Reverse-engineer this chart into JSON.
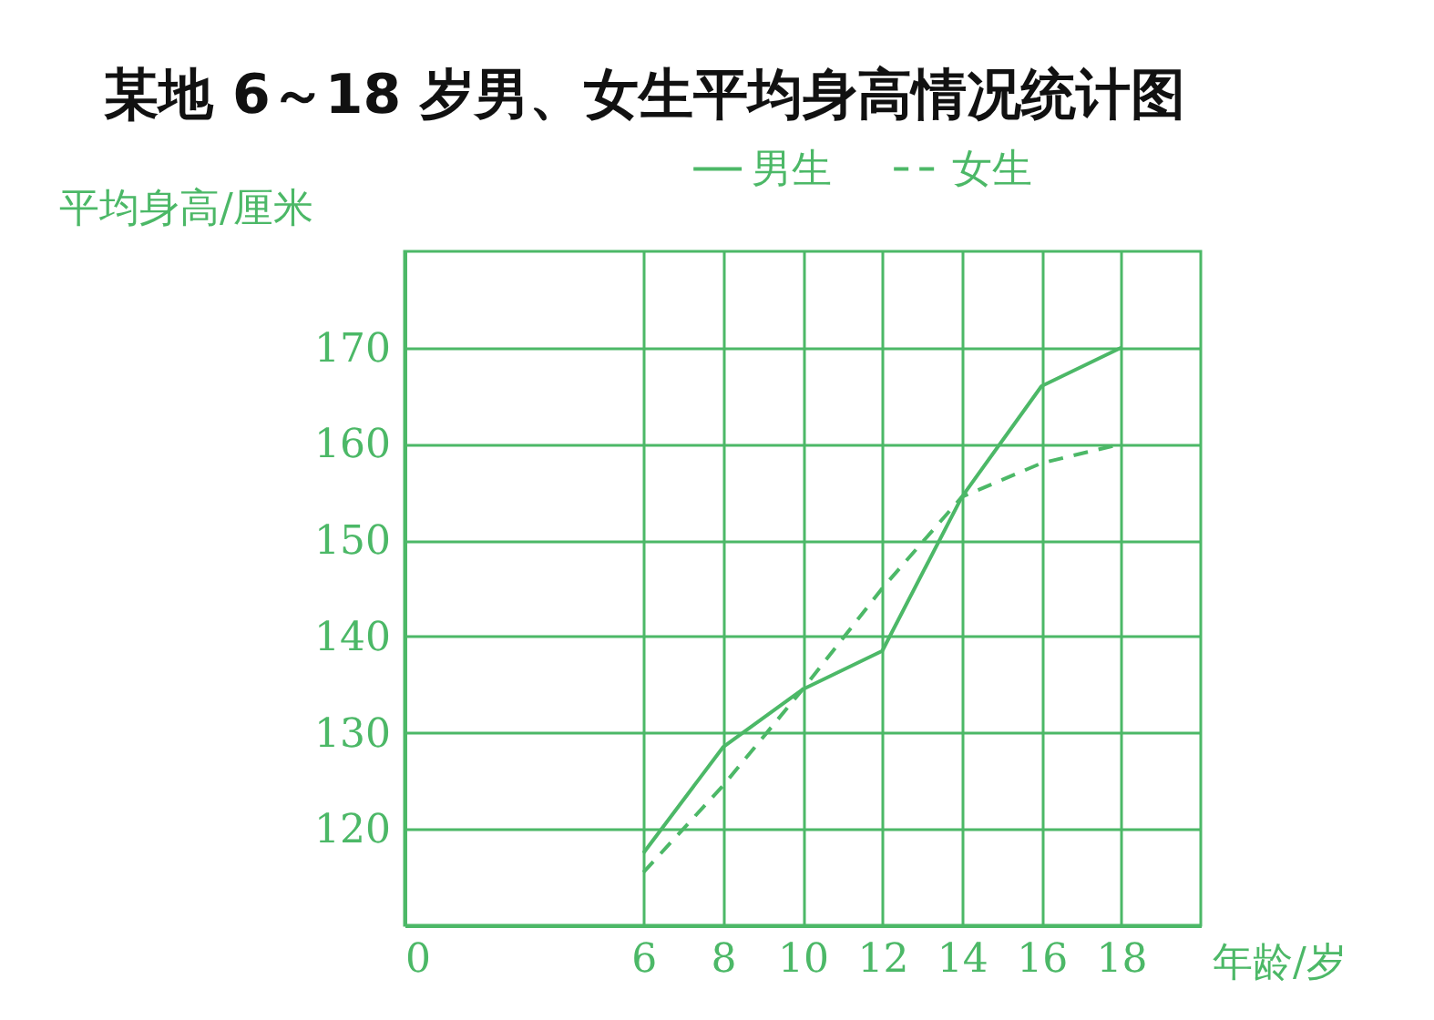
{
  "chart_data": {
    "type": "line",
    "title": "某地 6～18 岁男、女生平均身高情况统计图",
    "xlabel": "年龄/岁",
    "ylabel": "平均身高/厘米",
    "x": [
      6,
      8,
      10,
      12,
      14,
      16,
      18
    ],
    "series": [
      {
        "name": "男生",
        "color": "#4cb867",
        "line_style": "solid",
        "values": [
          117.5,
          128.5,
          134.5,
          138.5,
          154.5,
          166,
          170
        ]
      },
      {
        "name": "女生",
        "color": "#4cb867",
        "line_style": "dashed",
        "values": [
          115.5,
          124.5,
          134.5,
          145,
          154.5,
          158,
          160
        ]
      }
    ],
    "xlim": [
      0,
      20
    ],
    "xticks": [
      0,
      6,
      8,
      10,
      12,
      14,
      16,
      18
    ],
    "ylim": [
      110,
      180
    ],
    "yticks": [
      120,
      130,
      140,
      150,
      160,
      170
    ],
    "grid": true,
    "legend": "top right",
    "marker": "none"
  }
}
